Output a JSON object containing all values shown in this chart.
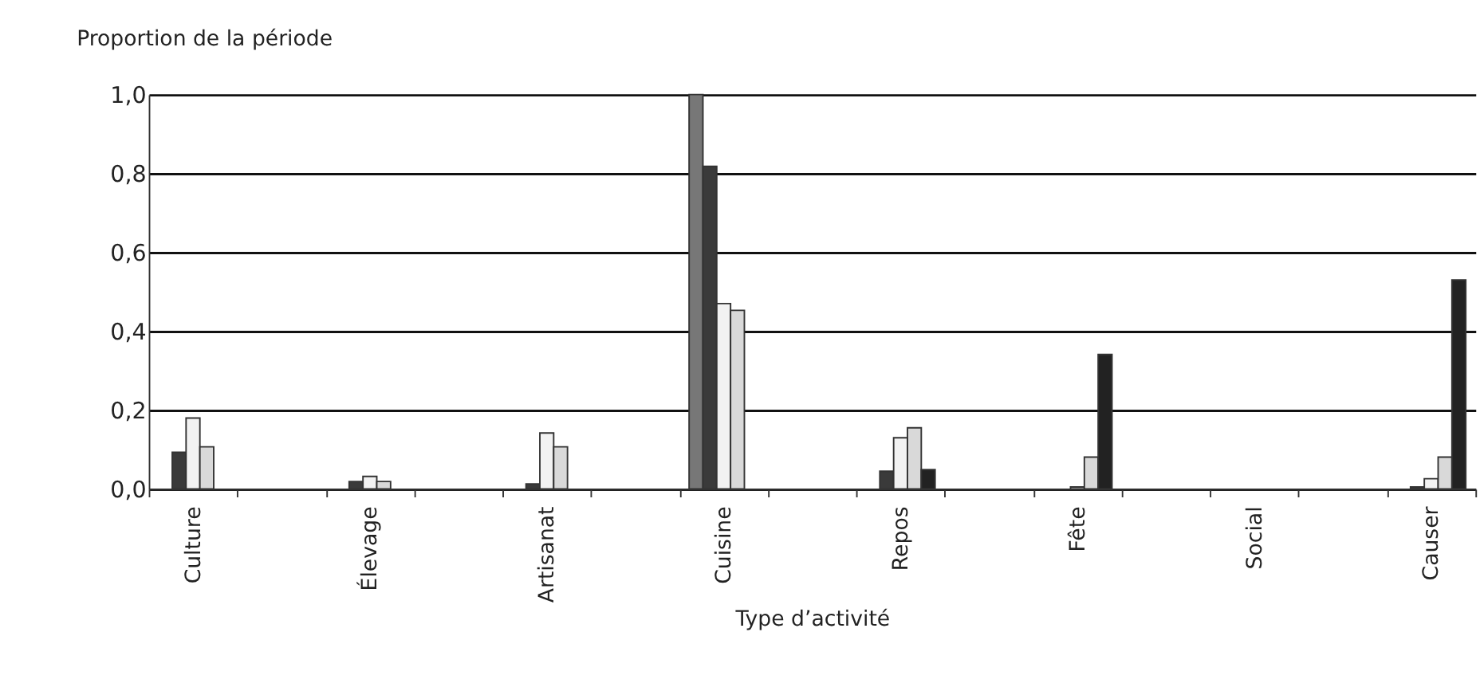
{
  "chart_data": {
    "type": "bar",
    "xlabel": "Type d’activité",
    "ylabel": "Proportion de la période",
    "categories": [
      "Culture",
      null,
      "Élevage",
      null,
      "Artisanat",
      null,
      "Cuisine",
      null,
      "Repos",
      null,
      "Fête",
      null,
      "Social",
      null,
      "Causer"
    ],
    "series": [
      {
        "color": "#777777",
        "values": [
          null,
          null,
          null,
          null,
          null,
          null,
          1.0,
          null,
          null,
          null,
          null,
          null,
          null,
          null,
          null
        ]
      },
      {
        "color": "#3a3a3a",
        "values": [
          0.093,
          null,
          0.019,
          null,
          0.013,
          null,
          0.818,
          null,
          0.045,
          null,
          null,
          null,
          null,
          null,
          0.005
        ]
      },
      {
        "color": "#f2f2f2",
        "values": [
          0.18,
          null,
          0.032,
          null,
          0.142,
          null,
          0.47,
          null,
          0.13,
          null,
          0.005,
          null,
          null,
          null,
          0.026
        ]
      },
      {
        "color": "#d9d9d9",
        "values": [
          0.107,
          null,
          0.019,
          null,
          0.107,
          null,
          0.453,
          null,
          0.155,
          null,
          0.081,
          null,
          null,
          null,
          0.081
        ]
      },
      {
        "color": "#222222",
        "values": [
          null,
          null,
          null,
          null,
          null,
          null,
          null,
          null,
          0.049,
          null,
          0.341,
          null,
          null,
          null,
          0.53
        ]
      }
    ],
    "ylim": [
      0,
      1.0
    ],
    "yticks": [
      {
        "value": 0,
        "label": "0,0"
      },
      {
        "value": 0.2,
        "label": "0,2"
      },
      {
        "value": 0.4,
        "label": "0,4"
      },
      {
        "value": 0.6,
        "label": "0,6"
      },
      {
        "value": 0.8,
        "label": "0,8"
      },
      {
        "value": 1.0,
        "label": "1,0"
      }
    ],
    "grid": "y",
    "legend": false
  }
}
